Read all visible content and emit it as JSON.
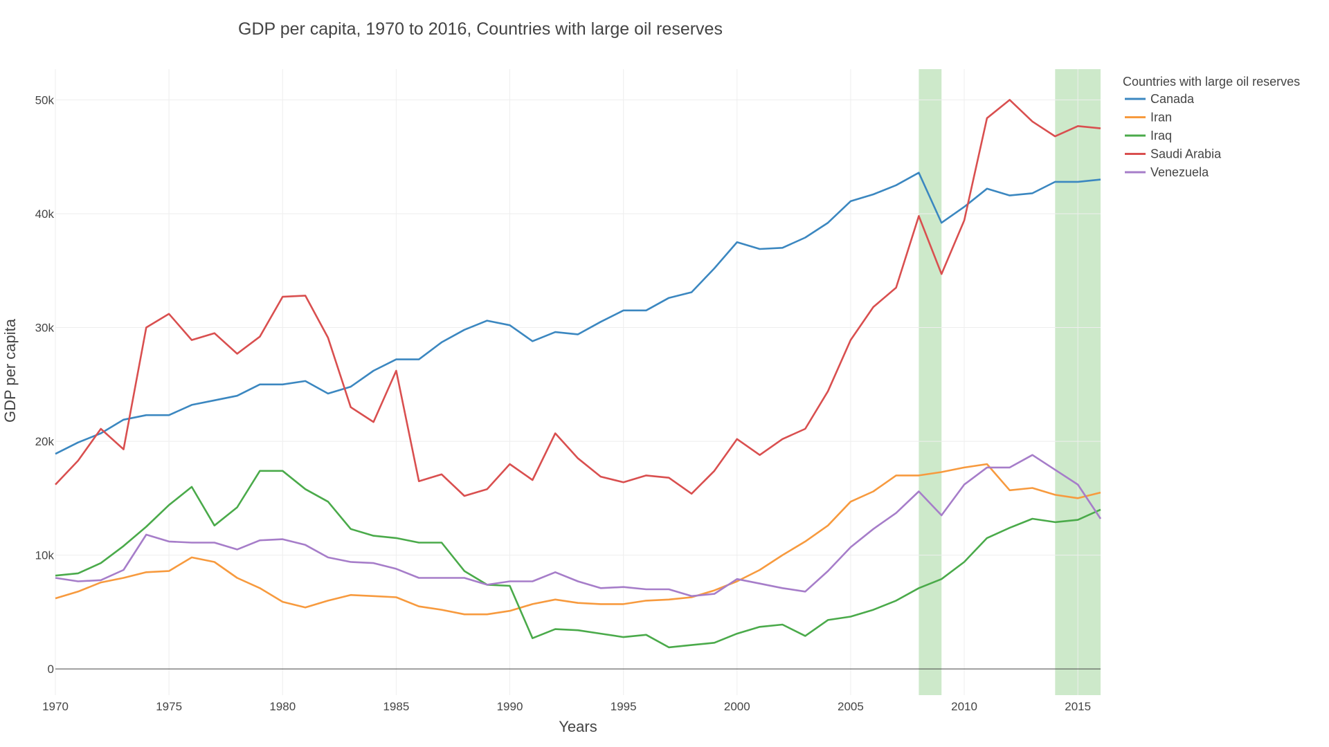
{
  "chart_data": {
    "type": "line",
    "title": "GDP per capita, 1970 to 2016, Countries with large oil reserves",
    "xlabel": "Years",
    "ylabel": "GDP per capita",
    "xlim": [
      1970,
      2016
    ],
    "ylim": [
      -2300,
      52700
    ],
    "x_ticks": [
      1970,
      1975,
      1980,
      1985,
      1990,
      1995,
      2000,
      2005,
      2010,
      2015
    ],
    "x_tick_labels": [
      "1970",
      "1975",
      "1980",
      "1985",
      "1990",
      "1995",
      "2000",
      "2005",
      "2010",
      "2015"
    ],
    "y_ticks": [
      0,
      10000,
      20000,
      30000,
      40000,
      50000
    ],
    "y_tick_labels": [
      "0",
      "10k",
      "20k",
      "30k",
      "40k",
      "50k"
    ],
    "grid": true,
    "legend": {
      "title": "Countries with large oil reserves",
      "position": "top-right"
    },
    "shaded_ranges": [
      {
        "x0": 2008,
        "x1": 2009,
        "color": "#b8dfb4"
      },
      {
        "x0": 2014,
        "x1": 2016,
        "color": "#b8dfb4"
      }
    ],
    "x": [
      1970,
      1971,
      1972,
      1973,
      1974,
      1975,
      1976,
      1977,
      1978,
      1979,
      1980,
      1981,
      1982,
      1983,
      1984,
      1985,
      1986,
      1987,
      1988,
      1989,
      1990,
      1991,
      1992,
      1993,
      1994,
      1995,
      1996,
      1997,
      1998,
      1999,
      2000,
      2001,
      2002,
      2003,
      2004,
      2005,
      2006,
      2007,
      2008,
      2009,
      2010,
      2011,
      2012,
      2013,
      2014,
      2015,
      2016
    ],
    "series": [
      {
        "name": "Canada",
        "color": "#3b87c0",
        "values": [
          18900,
          19900,
          20700,
          21900,
          22300,
          22300,
          23200,
          23600,
          24000,
          25000,
          25000,
          25300,
          24200,
          24800,
          26200,
          27200,
          27200,
          28700,
          29800,
          30600,
          30200,
          28800,
          29600,
          29400,
          30500,
          31500,
          31500,
          32600,
          33100,
          35200,
          37500,
          36900,
          37000,
          37900,
          39200,
          41100,
          41700,
          42500,
          43600,
          39200,
          40600,
          42200,
          41600,
          41800,
          42800,
          42800,
          43000
        ]
      },
      {
        "name": "Iran",
        "color": "#f79a3e",
        "values": [
          6200,
          6800,
          7600,
          8000,
          8500,
          8600,
          9800,
          9400,
          8000,
          7100,
          5900,
          5400,
          6000,
          6500,
          6400,
          6300,
          5500,
          5200,
          4800,
          4800,
          5100,
          5700,
          6100,
          5800,
          5700,
          5700,
          6000,
          6100,
          6300,
          6900,
          7700,
          8700,
          10000,
          11200,
          12600,
          14700,
          15600,
          17000,
          17000,
          17300,
          17700,
          18000,
          15700,
          15900,
          15300,
          15000,
          15500
        ]
      },
      {
        "name": "Iraq",
        "color": "#4aaa4a",
        "values": [
          8200,
          8400,
          9300,
          10800,
          12500,
          14400,
          16000,
          12600,
          14200,
          17400,
          17400,
          15800,
          14700,
          12300,
          11700,
          11500,
          11100,
          11100,
          8600,
          7400,
          7300,
          2700,
          3500,
          3400,
          3100,
          2800,
          3000,
          1900,
          2100,
          2300,
          3100,
          3700,
          3900,
          2900,
          4300,
          4600,
          5200,
          6000,
          7100,
          7900,
          9400,
          11500,
          12400,
          13200,
          12900,
          13100,
          14000
        ]
      },
      {
        "name": "Saudi Arabia",
        "color": "#d94f4f",
        "values": [
          16200,
          18300,
          21100,
          19300,
          30000,
          31200,
          28900,
          29500,
          27700,
          29200,
          32700,
          32800,
          29100,
          23000,
          21700,
          26200,
          16500,
          17100,
          15200,
          15800,
          18000,
          16600,
          20700,
          18500,
          16900,
          16400,
          17000,
          16800,
          15400,
          17400,
          20200,
          18800,
          20200,
          21100,
          24400,
          28900,
          31800,
          33500,
          39800,
          34700,
          39400,
          48400,
          50000,
          48100,
          46800,
          47700,
          47500
        ]
      },
      {
        "name": "Venezuela",
        "color": "#a67dc9",
        "values": [
          8000,
          7700,
          7800,
          8700,
          11800,
          11200,
          11100,
          11100,
          10500,
          11300,
          11400,
          10900,
          9800,
          9400,
          9300,
          8800,
          8000,
          8000,
          8000,
          7400,
          7700,
          7700,
          8500,
          7700,
          7100,
          7200,
          7000,
          7000,
          6400,
          6600,
          7900,
          7500,
          7100,
          6800,
          8600,
          10700,
          12300,
          13700,
          15600,
          13500,
          16200,
          17700,
          17700,
          18800,
          17500,
          16200,
          13200
        ]
      }
    ]
  }
}
